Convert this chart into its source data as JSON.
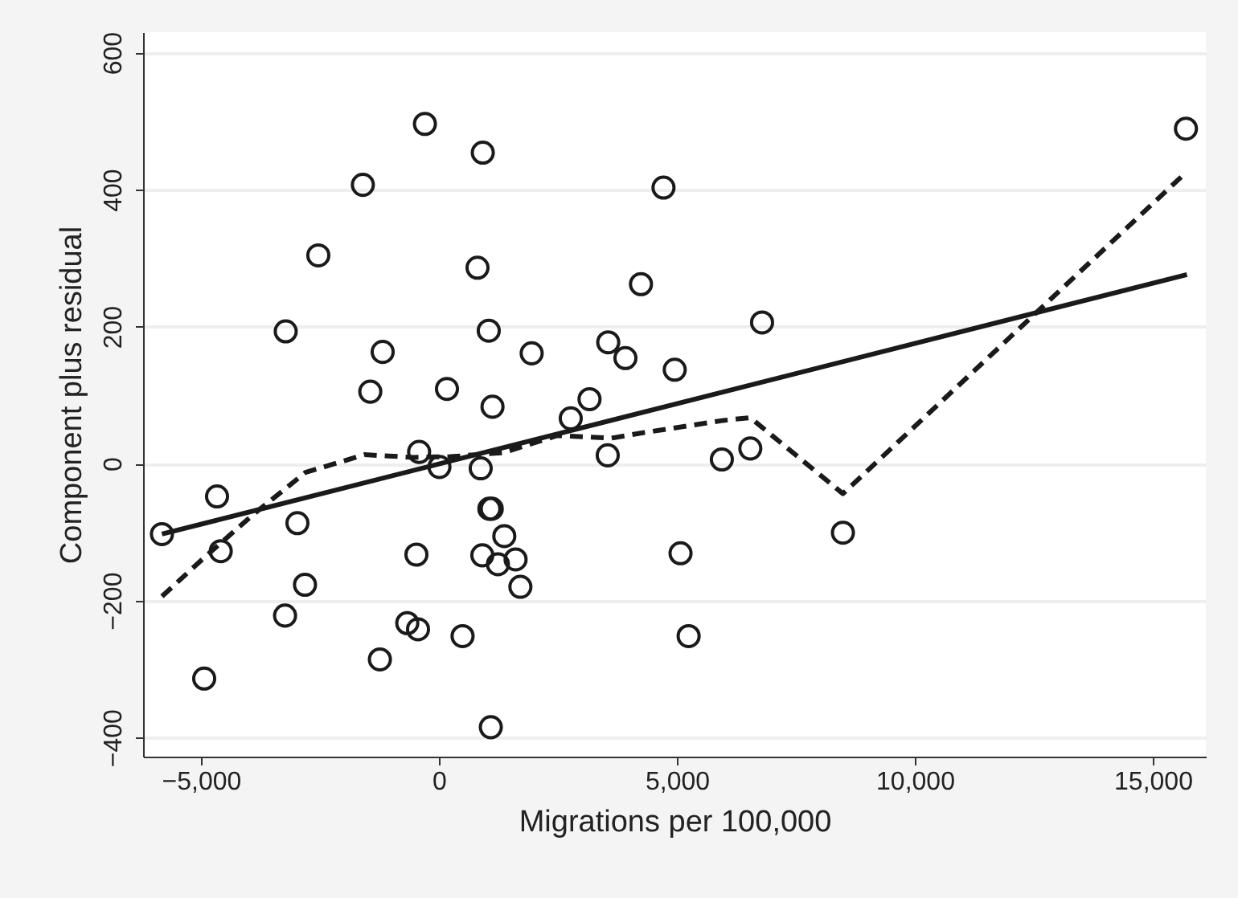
{
  "chart_data": {
    "type": "scatter",
    "xlabel": "Migrations per 100,000",
    "ylabel": "Component plus residual",
    "xlim": [
      -6216,
      16115
    ],
    "ylim": [
      -428,
      630
    ],
    "xticks": [
      {
        "value": -5000,
        "label": "−5,000"
      },
      0,
      {
        "value": 5000,
        "label": "5,000"
      },
      {
        "value": 10000,
        "label": "10,000"
      },
      {
        "value": 15000,
        "label": "15,000"
      }
    ],
    "yticks": [
      {
        "value": -400,
        "label": "−400"
      },
      {
        "value": -200,
        "label": "−200"
      },
      0,
      200,
      400,
      600
    ],
    "grid": "y",
    "series": [
      {
        "marker": "circle",
        "color": "#1a1a1a",
        "x": [
          -294,
          922,
          -1598,
          4719,
          -2534,
          811,
          4246,
          -3219,
          1047,
          -1182,
          1949,
          3558,
          3919,
          4955,
          -1442,
          169,
          1126,
          3165,
          2770,
          15697,
          6790,
          -5820,
          -4662,
          -4584,
          -2973,
          -2814,
          -3233,
          -4932,
          -416,
          11,
          878,
          1060,
          1110,
          1374,
          -473,
          912,
          1240,
          1611,
          1712,
          -665,
          -439,
          497,
          -1240,
          1091,
          3547,
          5077,
          5247,
          5945,
          6543,
          8489
        ],
        "values": [
          496,
          454,
          407,
          403,
          304,
          286,
          262,
          193,
          194,
          163,
          161,
          177,
          154,
          137,
          105,
          109,
          83,
          94,
          66,
          489,
          206,
          -103,
          -48,
          -128,
          -87,
          -177,
          -222,
          -314,
          17,
          -5,
          -7,
          -66,
          -66,
          -106,
          -133,
          -134,
          -147,
          -140,
          -180,
          -233,
          -242,
          -252,
          -286,
          -385,
          12,
          -131,
          -252,
          6,
          22,
          -101
        ]
      },
      {
        "type": "line",
        "line_style": "solid",
        "color": "#1a1a1a",
        "x": [
          -5820,
          15718
        ],
        "values": [
          -103,
          276
        ]
      },
      {
        "type": "line",
        "line_style": "dashed",
        "color": "#1a1a1a",
        "x": [
          -5820,
          -4942,
          -3929,
          -2804,
          -1564,
          -551,
          236,
          1362,
          2490,
          3614,
          4290,
          5979,
          6543,
          8489,
          15697
        ],
        "values": [
          -194,
          -138,
          -76,
          -13,
          13,
          9,
          10,
          16,
          41,
          37,
          45,
          63,
          67,
          -44,
          425
        ]
      }
    ]
  }
}
